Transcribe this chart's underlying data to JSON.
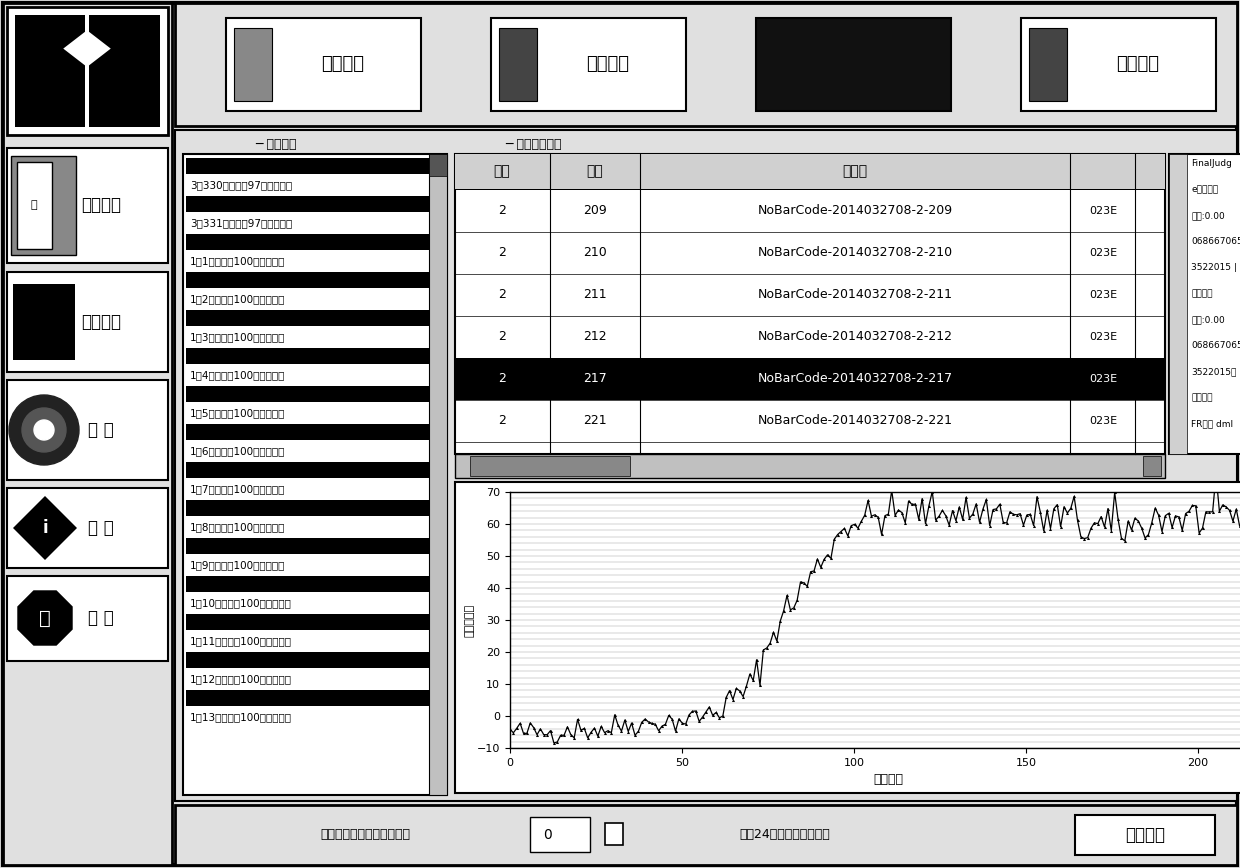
{
  "bg_color": "#e0e0e0",
  "white": "#ffffff",
  "black": "#000000",
  "dark_btn": "#111111",
  "track_label": "测试跟踪",
  "result_label": "测试结果查看",
  "top_buttons": [
    {
      "label": "条码录入",
      "dark": false
    },
    {
      "label": "测试准备",
      "dark": false
    },
    {
      "label": "",
      "dark": true
    },
    {
      "label": "结果查询",
      "dark": false
    }
  ],
  "left_buttons": [
    "系统配置",
    "系统日志",
    "巡检",
    "关于",
    "退出"
  ],
  "track_items": [
    "3层330位进行第97次数据采集",
    "3层331位进行第97次数据采集",
    "1层1位进行第100次数据采集",
    "1层2位进行第100次数据采集",
    "1层3位进行第100次数据采集",
    "1层4位进行第100次数据采集",
    "1层5位进行第100次数据采集",
    "1层6位进行第100次数据采集",
    "1层7位进行第100次数据采集",
    "1层8位进行第100次数据采集",
    "1层9位进行第100次数据采集",
    "1层10位进行第100次数据采集",
    "1层11位进行第100次数据采集",
    "1层12位进行第100次数据采集",
    "1层13位进行第100次数据采集"
  ],
  "table_cols": [
    "层次",
    "位号",
    "条形码",
    ""
  ],
  "table_rows": [
    [
      "2",
      "209",
      "NoBarCode-2014032708-2-209",
      "023E"
    ],
    [
      "2",
      "210",
      "NoBarCode-2014032708-2-210",
      "023E"
    ],
    [
      "2",
      "211",
      "NoBarCode-2014032708-2-211",
      "023E"
    ],
    [
      "2",
      "212",
      "NoBarCode-2014032708-2-212",
      "023E"
    ],
    [
      "2",
      "217",
      "NoBarCode-2014032708-2-217",
      "023E"
    ],
    [
      "2",
      "221",
      "NoBarCode-2014032708-2-221",
      "023E"
    ]
  ],
  "selected_row": 4,
  "right_info": [
    "FinalJudg",
    "e最大频率",
    "漂移:0.00",
    "068667065",
    "3522015 |",
    "最小频率",
    "漂移:0.00",
    "068667065",
    "3522015老",
    "化曲线出",
    "FR阶层 dml"
  ],
  "chart_xlabel": "采集次数",
  "chart_ylabel": "频率漂移量",
  "chart_xlim": [
    0.0,
    220.0
  ],
  "chart_ylim": [
    -10,
    70
  ],
  "chart_xticks": [
    0.0,
    50.0,
    100.0,
    150.0,
    200.0
  ],
  "chart_yticks": [
    -10,
    0,
    10,
    20,
    30,
    40,
    50,
    60,
    70
  ],
  "bottom_left": "初次通电测试延迟（分钟）",
  "bottom_mid": "最后24小时频率变化判定",
  "bottom_btn": "开始测试",
  "bottom_val": "0"
}
